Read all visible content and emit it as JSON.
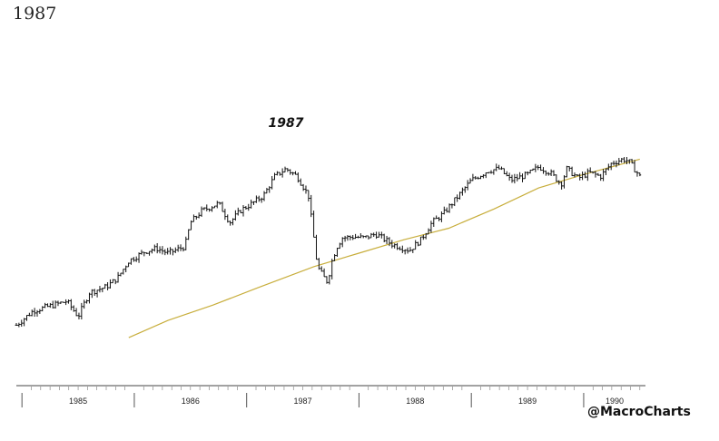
{
  "header": {
    "title": "1987"
  },
  "credit": "@MacroCharts",
  "chart_data": {
    "type": "line",
    "title": "",
    "annotations": [
      {
        "text": "1987",
        "x": "1987.35"
      }
    ],
    "x_range": [
      1984.95,
      1990.55
    ],
    "ylim": [
      100,
      360
    ],
    "grid": false,
    "tick_labels": [
      "1985",
      "1986",
      "1987",
      "1988",
      "1989",
      "1990"
    ],
    "series": [
      {
        "type": "ohlc-bar",
        "color": "#111111",
        "x": [
          1984.95,
          1985.1,
          1985.25,
          1985.4,
          1985.5,
          1985.6,
          1985.75,
          1985.85,
          1985.95,
          1986.1,
          1986.2,
          1986.3,
          1986.45,
          1986.5,
          1986.6,
          1986.75,
          1986.85,
          1986.95,
          1987.05,
          1987.15,
          1987.25,
          1987.35,
          1987.45,
          1987.55,
          1987.63,
          1987.68,
          1987.72,
          1987.76,
          1987.8,
          1987.85,
          1987.95,
          1988.05,
          1988.15,
          1988.3,
          1988.45,
          1988.55,
          1988.65,
          1988.75,
          1988.9,
          1989.0,
          1989.15,
          1989.25,
          1989.35,
          1989.5,
          1989.6,
          1989.7,
          1989.8,
          1989.85,
          1989.95,
          1990.05,
          1990.15,
          1990.25,
          1990.35,
          1990.4,
          1990.45,
          1990.5
        ],
        "values": [
          163,
          178,
          183,
          188,
          172,
          197,
          203,
          212,
          230,
          240,
          243,
          238,
          245,
          270,
          282,
          290,
          270,
          283,
          290,
          298,
          318,
          326,
          318,
          298,
          224,
          214,
          208,
          230,
          244,
          254,
          255,
          254,
          258,
          247,
          241,
          252,
          270,
          279,
          300,
          314,
          324,
          326,
          314,
          320,
          328,
          322,
          310,
          326,
          316,
          322,
          318,
          332,
          336,
          334,
          326,
          318
        ]
      },
      {
        "name": "",
        "type": "line",
        "color": "#c8ae3c",
        "x": [
          1985.95,
          1986.3,
          1986.7,
          1987.1,
          1987.6,
          1988.0,
          1988.4,
          1988.8,
          1989.2,
          1989.6,
          1990.0,
          1990.5
        ],
        "values": [
          150,
          168,
          184,
          202,
          224,
          238,
          252,
          264,
          284,
          306,
          320,
          336
        ]
      }
    ]
  }
}
